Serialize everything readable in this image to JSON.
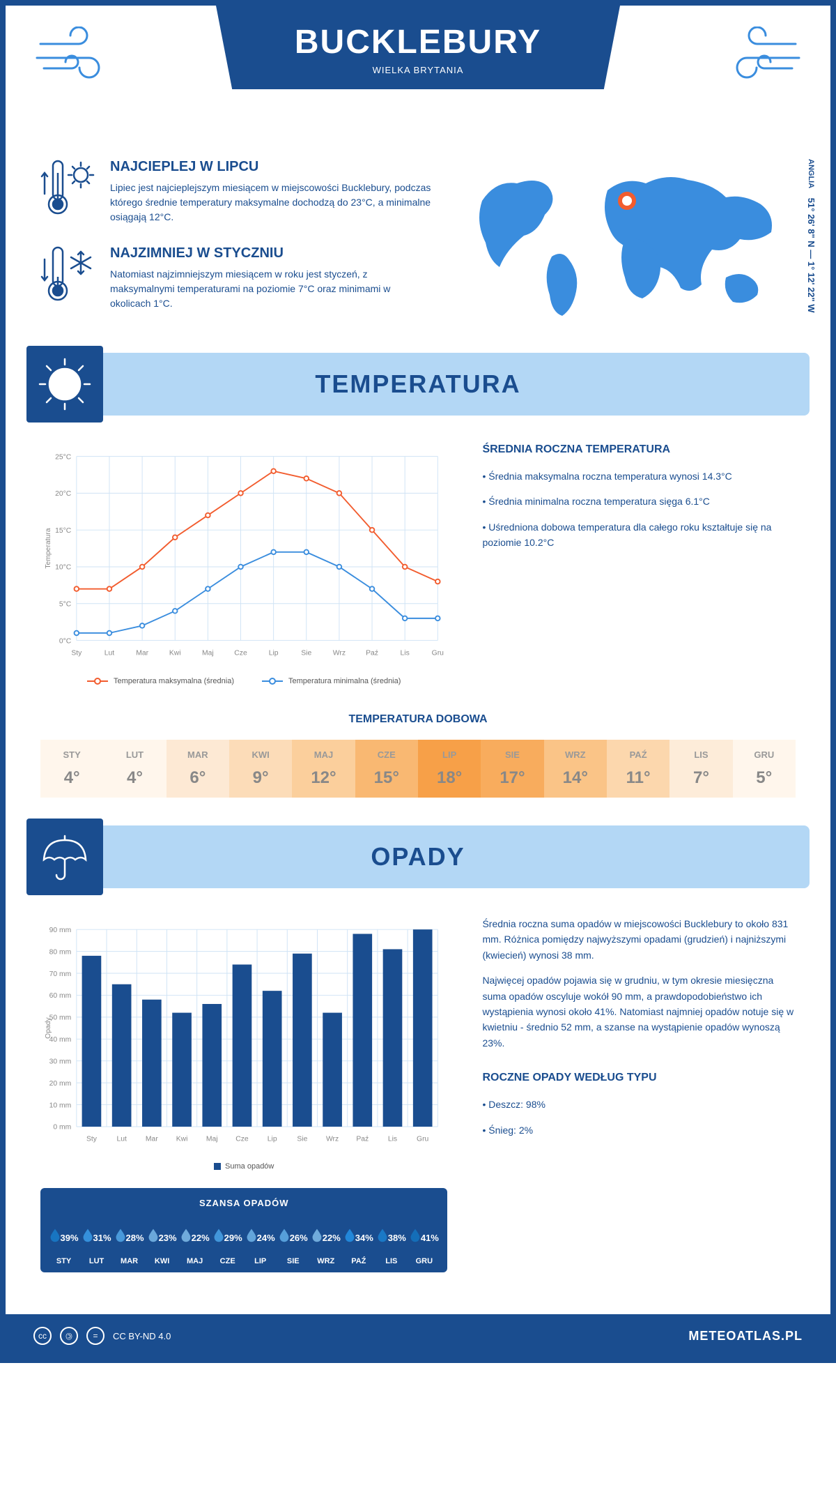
{
  "header": {
    "title": "BUCKLEBURY",
    "subtitle": "WIELKA BRYTANIA",
    "coords": "51° 26' 8\" N — 1° 12' 22\" W",
    "region": "ANGLIA"
  },
  "warmest": {
    "title": "NAJCIEPLEJ W LIPCU",
    "text": "Lipiec jest najcieplejszym miesiącem w miejscowości Bucklebury, podczas którego średnie temperatury maksymalne dochodzą do 23°C, a minimalne osiągają 12°C."
  },
  "coldest": {
    "title": "NAJZIMNIEJ W STYCZNIU",
    "text": "Natomiast najzimniejszym miesiącem w roku jest styczeń, z maksymalnymi temperaturami na poziomie 7°C oraz minimami w okolicach 1°C."
  },
  "temp_section": {
    "title": "TEMPERATURA",
    "annual_title": "ŚREDNIA ROCZNA TEMPERATURA",
    "bullets": [
      "• Średnia maksymalna roczna temperatura wynosi 14.3°C",
      "• Średnia minimalna roczna temperatura sięga 6.1°C",
      "• Uśredniona dobowa temperatura dla całego roku kształtuje się na poziomie 10.2°C"
    ],
    "chart": {
      "months": [
        "Sty",
        "Lut",
        "Mar",
        "Kwi",
        "Maj",
        "Cze",
        "Lip",
        "Sie",
        "Wrz",
        "Paź",
        "Lis",
        "Gru"
      ],
      "max_series": [
        7,
        7,
        10,
        14,
        17,
        20,
        23,
        22,
        20,
        15,
        10,
        8
      ],
      "min_series": [
        1,
        1,
        2,
        4,
        7,
        10,
        12,
        12,
        10,
        7,
        3,
        3
      ],
      "ylim": [
        0,
        25
      ],
      "ytick_step": 5,
      "axis_label": "Temperatura",
      "max_color": "#f25c2e",
      "min_color": "#3a8dde",
      "grid_color": "#cfe3f5",
      "legend_max": "Temperatura maksymalna (średnia)",
      "legend_min": "Temperatura minimalna (średnia)"
    },
    "daily_title": "TEMPERATURA DOBOWA",
    "daily": {
      "months": [
        "STY",
        "LUT",
        "MAR",
        "KWI",
        "MAJ",
        "CZE",
        "LIP",
        "SIE",
        "WRZ",
        "PAŹ",
        "LIS",
        "GRU"
      ],
      "values": [
        "4°",
        "4°",
        "6°",
        "9°",
        "12°",
        "15°",
        "18°",
        "17°",
        "14°",
        "11°",
        "7°",
        "5°"
      ],
      "raw": [
        4,
        4,
        6,
        9,
        12,
        15,
        18,
        17,
        14,
        11,
        7,
        5
      ],
      "colors": [
        "#fff6ec",
        "#fff6ec",
        "#fde9d4",
        "#fcdcb8",
        "#fbcf9c",
        "#f9b872",
        "#f7a048",
        "#f8ac5d",
        "#fac487",
        "#fcd7ad",
        "#fdecd9",
        "#fff6ec"
      ]
    }
  },
  "precip_section": {
    "title": "OPADY",
    "chart": {
      "months": [
        "Sty",
        "Lut",
        "Mar",
        "Kwi",
        "Maj",
        "Cze",
        "Lip",
        "Sie",
        "Wrz",
        "Paź",
        "Lis",
        "Gru"
      ],
      "values": [
        78,
        65,
        58,
        52,
        56,
        74,
        62,
        79,
        52,
        88,
        81,
        90
      ],
      "ylim": [
        0,
        90
      ],
      "ytick_step": 10,
      "axis_label": "Opady",
      "bar_color": "#1a4d8f",
      "grid_color": "#cfe3f5",
      "legend": "Suma opadów"
    },
    "text1": "Średnia roczna suma opadów w miejscowości Bucklebury to około 831 mm. Różnica pomiędzy najwyższymi opadami (grudzień) i najniższymi (kwiecień) wynosi 38 mm.",
    "text2": "Najwięcej opadów pojawia się w grudniu, w tym okresie miesięczna suma opadów oscyluje wokół 90 mm, a prawdopodobieństwo ich wystąpienia wynosi około 41%. Natomiast najmniej opadów notuje się w kwietniu - średnio 52 mm, a szanse na wystąpienie opadów wynoszą 23%.",
    "chance_title": "SZANSA OPADÓW",
    "chance": {
      "months": [
        "STY",
        "LUT",
        "MAR",
        "KWI",
        "MAJ",
        "CZE",
        "LIP",
        "SIE",
        "WRZ",
        "PAŹ",
        "LIS",
        "GRU"
      ],
      "pct": [
        "39%",
        "31%",
        "28%",
        "23%",
        "22%",
        "29%",
        "24%",
        "26%",
        "22%",
        "34%",
        "38%",
        "41%"
      ],
      "raw": [
        39,
        31,
        28,
        23,
        22,
        29,
        24,
        26,
        22,
        34,
        38,
        41
      ]
    },
    "type_title": "ROCZNE OPADY WEDŁUG TYPU",
    "type_bullets": [
      "• Deszcz: 98%",
      "• Śnieg: 2%"
    ]
  },
  "footer": {
    "license": "CC BY-ND 4.0",
    "site": "METEOATLAS.PL"
  },
  "colors": {
    "primary": "#1a4d8f",
    "light_blue": "#b3d7f5",
    "accent": "#3a8dde"
  }
}
